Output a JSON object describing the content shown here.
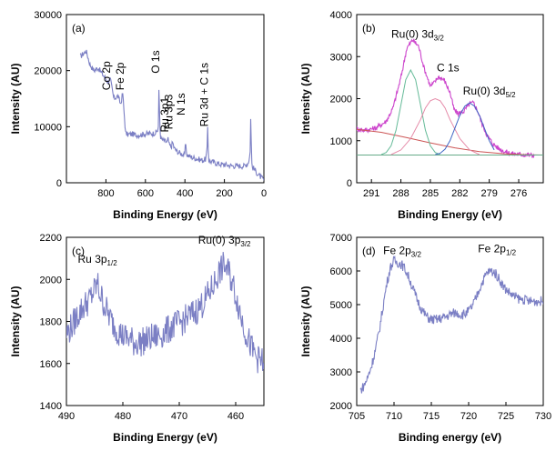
{
  "colors": {
    "trace": "#7b7fc4",
    "envelope": "#cc44cc",
    "peak1": "#66bb99",
    "peak2": "#e58aa8",
    "peak3": "#3f66c4",
    "background": "#cc5555",
    "baseline": "#66aa88"
  },
  "chart_data": [
    {
      "type": "line",
      "panel_label": "(a)",
      "xlabel": "Binding Energy (eV)",
      "ylabel": "Intensity (AU)",
      "xlim": [
        1000,
        0
      ],
      "ylim": [
        0,
        30000
      ],
      "x_reversed": true,
      "xticks": [
        800,
        600,
        400,
        200,
        0
      ],
      "yticks": [
        0,
        10000,
        20000,
        30000
      ],
      "annotations": [
        {
          "text": "Co 2p",
          "x": 778,
          "y": 16500,
          "rotate": true
        },
        {
          "text": "Fe 2p",
          "x": 710,
          "y": 16500,
          "rotate": true
        },
        {
          "text": "O 1s",
          "x": 530,
          "y": 19500,
          "rotate": true
        },
        {
          "text": "Ru 3p1",
          "x": 484,
          "y": 9000,
          "rotate": true
        },
        {
          "text": "Ru 3p3",
          "x": 462,
          "y": 9500,
          "rotate": true
        },
        {
          "text": "N 1s",
          "x": 400,
          "y": 12000,
          "rotate": true
        },
        {
          "text": "Ru 3d + C 1s",
          "x": 284,
          "y": 10000,
          "rotate": true
        }
      ],
      "series": [
        {
          "color_key": "trace",
          "noise": 500,
          "x": [
            930,
            900,
            880,
            860,
            840,
            820,
            800,
            790,
            780,
            775,
            770,
            760,
            740,
            725,
            715,
            710,
            705,
            700,
            690,
            670,
            640,
            600,
            560,
            545,
            535,
            531,
            528,
            525,
            520,
            510,
            500,
            490,
            485,
            480,
            470,
            462,
            455,
            440,
            420,
            405,
            400,
            398,
            390,
            370,
            340,
            310,
            295,
            288,
            285,
            282,
            280,
            270,
            250,
            220,
            190,
            160,
            120,
            100,
            80,
            70,
            66,
            63,
            60,
            50,
            30,
            10,
            0
          ],
          "y": [
            22500,
            23500,
            21000,
            20000,
            20500,
            19500,
            18500,
            18000,
            18500,
            18000,
            17000,
            15000,
            15500,
            14000,
            16000,
            13500,
            11000,
            8800,
            8600,
            8700,
            8500,
            8700,
            8800,
            9000,
            9500,
            18000,
            11500,
            8500,
            7800,
            7600,
            7400,
            7200,
            7800,
            6800,
            6400,
            7200,
            6200,
            5600,
            5200,
            5000,
            4800,
            7000,
            5000,
            4600,
            4300,
            4000,
            4200,
            5500,
            10200,
            6500,
            4000,
            3800,
            3600,
            3300,
            3200,
            3000,
            3000,
            3000,
            3500,
            5000,
            13500,
            4500,
            2800,
            2500,
            1500,
            800,
            400
          ]
        }
      ]
    },
    {
      "type": "line",
      "panel_label": "(b)",
      "xlabel": "Binding Energy (eV)",
      "ylabel": "Intensity (AU)",
      "xlim": [
        292.5,
        273.5
      ],
      "ylim": [
        0,
        4000
      ],
      "x_reversed": true,
      "xticks": [
        291,
        288,
        285,
        282,
        279,
        276
      ],
      "yticks": [
        0,
        1000,
        2000,
        3000,
        4000
      ],
      "annotations": [
        {
          "text": "Ru(0) 3d",
          "sub": "3/2",
          "x": 286.3,
          "y": 3450
        },
        {
          "text": "C 1s",
          "x": 283.2,
          "y": 2650
        },
        {
          "text": "Ru(0) 3d",
          "sub": "5/2",
          "x": 279.0,
          "y": 2100
        }
      ],
      "series": [
        {
          "color_key": "envelope",
          "noise": 60,
          "x": [
            292.5,
            291.5,
            290.5,
            289.5,
            288.8,
            288.0,
            287.4,
            286.8,
            286.2,
            285.6,
            285.0,
            284.6,
            284.2,
            283.6,
            283.0,
            282.6,
            282.2,
            281.6,
            281.0,
            280.6,
            280.2,
            279.7,
            279.2,
            278.6,
            278.0,
            277.4,
            276.8,
            276.2,
            275.6,
            275.0,
            274.4
          ],
          "y": [
            1280,
            1250,
            1310,
            1460,
            1780,
            2500,
            3200,
            3400,
            3250,
            2700,
            2300,
            2380,
            2520,
            2450,
            2150,
            1750,
            1640,
            1700,
            1880,
            1900,
            1720,
            1380,
            1120,
            920,
            810,
            740,
            700,
            680,
            670,
            660,
            650
          ]
        },
        {
          "color_key": "background",
          "noise": 0,
          "x": [
            292.5,
            290,
            287.5,
            285,
            282.5,
            280,
            277.5,
            275,
            273.5
          ],
          "y": [
            1270,
            1200,
            1080,
            950,
            830,
            740,
            690,
            665,
            660
          ]
        },
        {
          "color_key": "baseline",
          "noise": 0,
          "x": [
            292.5,
            273.5
          ],
          "y": [
            660,
            660
          ]
        },
        {
          "color_key": "peak1",
          "noise": 0,
          "x": [
            290.0,
            289.5,
            289.0,
            288.5,
            288.0,
            287.5,
            287.0,
            286.5,
            286.0,
            285.5,
            285.0,
            284.5,
            284.0
          ],
          "y": [
            670,
            720,
            880,
            1250,
            1850,
            2450,
            2680,
            2450,
            1850,
            1250,
            880,
            720,
            670
          ]
        },
        {
          "color_key": "peak2",
          "noise": 0,
          "x": [
            289.0,
            288.0,
            287.0,
            286.0,
            285.5,
            285.0,
            284.5,
            284.0,
            283.5,
            283.0,
            282.0,
            281.0,
            280.0
          ],
          "y": [
            670,
            780,
            1050,
            1500,
            1780,
            1950,
            2000,
            1950,
            1780,
            1500,
            1050,
            780,
            670
          ]
        },
        {
          "color_key": "peak3",
          "noise": 0,
          "x": [
            284.5,
            284.0,
            283.5,
            283.0,
            282.5,
            282.0,
            281.5,
            281.0,
            280.5,
            280.0,
            279.5,
            279.0,
            278.5
          ],
          "y": [
            670,
            700,
            800,
            1000,
            1300,
            1600,
            1820,
            1900,
            1820,
            1600,
            1300,
            1000,
            780
          ]
        }
      ]
    },
    {
      "type": "line",
      "panel_label": "(c)",
      "xlabel": "Binding Energy (eV)",
      "ylabel": "Intensity (AU)",
      "xlim": [
        490,
        455
      ],
      "ylim": [
        1400,
        2200
      ],
      "x_reversed": true,
      "xticks": [
        490,
        480,
        470,
        460
      ],
      "yticks": [
        1400,
        1600,
        1800,
        2000,
        2200
      ],
      "annotations": [
        {
          "text": "Ru 3p",
          "sub": "1/2",
          "x": 484.5,
          "y": 2080
        },
        {
          "text": "Ru(0) 3p",
          "sub": "3/2",
          "x": 462,
          "y": 2170
        }
      ],
      "series": [
        {
          "color_key": "trace",
          "noise": 70,
          "x": [
            490,
            489,
            488,
            487,
            486,
            485,
            484.5,
            484,
            483,
            482,
            481,
            480,
            479,
            478,
            477,
            476,
            475,
            474,
            473,
            472,
            471,
            470,
            469,
            468,
            467,
            466,
            465,
            464,
            463,
            462,
            461,
            460,
            459,
            458,
            457,
            456,
            455
          ],
          "y": [
            1740,
            1780,
            1830,
            1870,
            1900,
            1950,
            1980,
            1930,
            1860,
            1800,
            1760,
            1730,
            1720,
            1700,
            1700,
            1710,
            1720,
            1730,
            1740,
            1760,
            1780,
            1790,
            1810,
            1830,
            1850,
            1880,
            1920,
            1970,
            2030,
            2070,
            2020,
            1930,
            1820,
            1730,
            1660,
            1620,
            1600
          ]
        }
      ]
    },
    {
      "type": "line",
      "panel_label": "(d)",
      "xlabel": "Binding energy (eV)",
      "ylabel": "Intensity (AU)",
      "xlim": [
        705,
        730
      ],
      "ylim": [
        2000,
        7000
      ],
      "x_reversed": false,
      "xticks": [
        705,
        710,
        715,
        720,
        725,
        730
      ],
      "yticks": [
        2000,
        3000,
        4000,
        5000,
        6000,
        7000
      ],
      "annotations": [
        {
          "text": "Fe 2p",
          "sub": "3/2",
          "x": 711.1,
          "y": 6500
        },
        {
          "text": "Fe 2p",
          "sub": "1/2",
          "x": 723.8,
          "y": 6560
        }
      ],
      "series": [
        {
          "color_key": "trace",
          "noise": 150,
          "x": [
            705.5,
            706,
            706.5,
            707,
            707.5,
            708,
            708.5,
            709,
            709.5,
            710,
            710.5,
            711,
            711.5,
            712,
            712.5,
            713,
            713.5,
            714,
            714.5,
            715,
            715.5,
            716,
            716.5,
            717,
            717.5,
            718,
            718.5,
            719,
            719.5,
            720,
            720.5,
            721,
            721.5,
            722,
            722.5,
            723,
            723.5,
            724,
            724.5,
            725,
            725.5,
            726,
            726.5,
            727,
            727.5,
            728,
            728.5,
            729,
            729.5,
            730
          ],
          "y": [
            2450,
            2600,
            2850,
            3200,
            3650,
            4200,
            4900,
            5600,
            6100,
            6300,
            6250,
            6200,
            6050,
            5800,
            5500,
            5200,
            4950,
            4750,
            4620,
            4550,
            4550,
            4570,
            4600,
            4650,
            4700,
            4750,
            4750,
            4700,
            4720,
            4800,
            4950,
            5200,
            5500,
            5750,
            5950,
            6000,
            5950,
            5800,
            5600,
            5450,
            5350,
            5250,
            5200,
            5150,
            5150,
            5100,
            5100,
            5100,
            5100,
            5100
          ]
        }
      ]
    }
  ]
}
